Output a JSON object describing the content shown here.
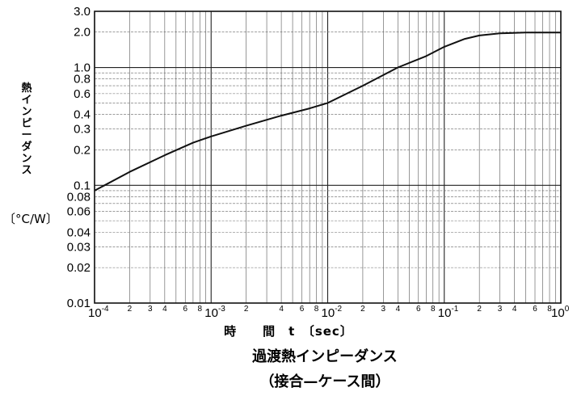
{
  "chart_data": {
    "type": "line",
    "scale": {
      "x": "log",
      "y": "log"
    },
    "title": "過渡熱インピーダンス",
    "subtitle": "（接合—ケース間）",
    "ylabel": "熱インピーダンス",
    "yunit": "〔°C/W〕",
    "xlabel": "時　　間　t　〔sec〕",
    "xlim": [
      0.0001,
      1
    ],
    "ylim": [
      0.01,
      3.0
    ],
    "grid": true,
    "y_ticks": [
      {
        "value": 3.0,
        "label": "3.0"
      },
      {
        "value": 2.0,
        "label": "2.0"
      },
      {
        "value": 1.0,
        "label": "1.0"
      },
      {
        "value": 0.8,
        "label": "0.8"
      },
      {
        "value": 0.6,
        "label": "0.6"
      },
      {
        "value": 0.4,
        "label": "0.4"
      },
      {
        "value": 0.3,
        "label": "0.3"
      },
      {
        "value": 0.2,
        "label": "0.2"
      },
      {
        "value": 0.1,
        "label": "0.1"
      },
      {
        "value": 0.08,
        "label": "0.08"
      },
      {
        "value": 0.06,
        "label": "0.06"
      },
      {
        "value": 0.04,
        "label": "0.04"
      },
      {
        "value": 0.03,
        "label": "0.03"
      },
      {
        "value": 0.02,
        "label": "0.02"
      },
      {
        "value": 0.01,
        "label": "0.01"
      }
    ],
    "x_major_ticks": [
      {
        "value": 0.0001,
        "base": "10",
        "exp": "-4"
      },
      {
        "value": 0.001,
        "base": "10",
        "exp": "-3"
      },
      {
        "value": 0.01,
        "base": "10",
        "exp": "-2"
      },
      {
        "value": 0.1,
        "base": "10",
        "exp": "-1"
      },
      {
        "value": 1,
        "base": "10",
        "exp": "0"
      }
    ],
    "x_minor_ticks": [
      {
        "value": 0.0002,
        "label": "2"
      },
      {
        "value": 0.0003,
        "label": "3"
      },
      {
        "value": 0.0004,
        "label": "4"
      },
      {
        "value": 0.0006,
        "label": "6"
      },
      {
        "value": 0.0008,
        "label": "8"
      },
      {
        "value": 0.002,
        "label": "2"
      },
      {
        "value": 0.004,
        "label": "4"
      },
      {
        "value": 0.006,
        "label": "6"
      },
      {
        "value": 0.008,
        "label": "8"
      },
      {
        "value": 0.02,
        "label": "2"
      },
      {
        "value": 0.03,
        "label": "3"
      },
      {
        "value": 0.04,
        "label": "4"
      },
      {
        "value": 0.06,
        "label": "6"
      },
      {
        "value": 0.08,
        "label": "8"
      },
      {
        "value": 0.2,
        "label": "2"
      },
      {
        "value": 0.3,
        "label": "3"
      },
      {
        "value": 0.4,
        "label": "4"
      },
      {
        "value": 0.6,
        "label": "6"
      },
      {
        "value": 0.8,
        "label": "8"
      }
    ],
    "series": [
      {
        "x": [
          0.0001,
          0.0002,
          0.0004,
          0.0007,
          0.001,
          0.002,
          0.004,
          0.007,
          0.01,
          0.02,
          0.04,
          0.07,
          0.1,
          0.15,
          0.2,
          0.3,
          0.5,
          1.0
        ],
        "y": [
          0.09,
          0.13,
          0.18,
          0.23,
          0.26,
          0.32,
          0.39,
          0.45,
          0.5,
          0.7,
          1.0,
          1.25,
          1.5,
          1.75,
          1.87,
          1.95,
          1.98,
          1.98
        ]
      }
    ]
  }
}
